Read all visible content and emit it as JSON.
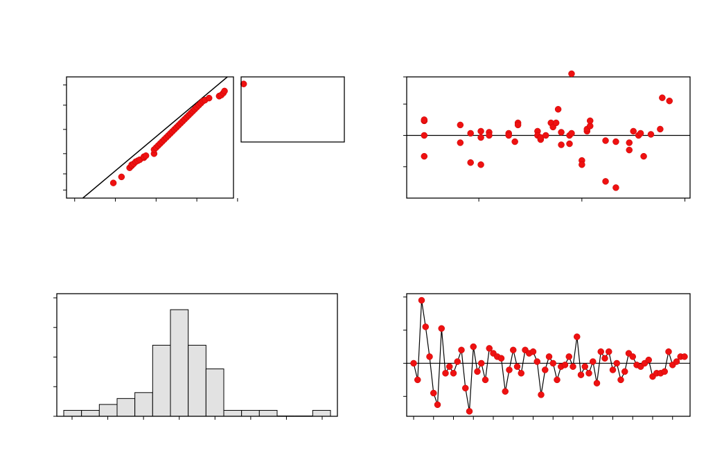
{
  "chart_data": [
    {
      "type": "scatter",
      "panel": "normal-probability-plot",
      "xlim": [
        -3.2,
        0.9
      ],
      "ylim": [
        -3.0,
        3.0
      ],
      "xticks": [
        -3.0,
        -2.0,
        -1.0,
        0.0,
        1.0
      ],
      "yticks": [
        -2.6,
        -1.8,
        -0.8,
        0.4,
        1.6,
        2.6
      ],
      "fit_line": {
        "x": [
          -2.8,
          0.75
        ],
        "y": [
          -3.0,
          3.0
        ]
      },
      "series": [
        {
          "x": [
            -2.05,
            -1.85,
            -1.65,
            -1.6,
            -1.6,
            -1.55,
            -1.5,
            -1.45,
            -1.4,
            -1.3,
            -1.3,
            -1.25,
            -1.05,
            -1.05,
            -1.0,
            -0.95,
            -0.9,
            -0.85,
            -0.8,
            -0.75,
            -0.7,
            -0.65,
            -0.6,
            -0.55,
            -0.5,
            -0.45,
            -0.4,
            -0.35,
            -0.3,
            -0.25,
            -0.2,
            -0.15,
            -0.1,
            -0.05,
            0.0,
            0.05,
            0.1,
            0.15,
            0.2,
            0.3,
            0.55,
            0.55,
            0.6,
            0.65,
            0.68,
            1.15
          ],
          "y": [
            -2.25,
            -1.95,
            -1.5,
            -1.4,
            -1.35,
            -1.3,
            -1.2,
            -1.15,
            -1.1,
            -1.0,
            -0.95,
            -0.9,
            -0.8,
            -0.6,
            -0.5,
            -0.4,
            -0.3,
            -0.2,
            -0.1,
            0.0,
            0.1,
            0.2,
            0.3,
            0.4,
            0.5,
            0.6,
            0.7,
            0.8,
            0.9,
            1.0,
            1.1,
            1.2,
            1.3,
            1.4,
            1.5,
            1.6,
            1.7,
            1.8,
            1.85,
            1.95,
            2.05,
            2.05,
            2.1,
            2.2,
            2.3,
            2.65
          ]
        }
      ]
    },
    {
      "type": "box",
      "panel": "empty-legend-box"
    },
    {
      "type": "scatter",
      "panel": "residuals-vs-fits",
      "xlim": [
        0.0,
        2.75
      ],
      "ylim": [
        -3.0,
        2.8
      ],
      "xticks": [
        0.7,
        1.7,
        2.7
      ],
      "yticks": [
        -1.5,
        0.0,
        1.5,
        2.8
      ],
      "reference_y": 0.0,
      "series": [
        {
          "x": [
            0.17,
            0.17,
            0.17,
            0.17,
            0.17,
            0.52,
            0.52,
            0.62,
            0.62,
            0.72,
            0.72,
            0.72,
            0.8,
            0.8,
            0.99,
            0.99,
            1.05,
            1.08,
            1.08,
            1.27,
            1.27,
            1.3,
            1.3,
            1.35,
            1.4,
            1.42,
            1.45,
            1.47,
            1.5,
            1.5,
            1.58,
            1.58,
            1.6,
            1.6,
            1.7,
            1.7,
            1.75,
            1.75,
            1.78,
            1.78,
            1.93,
            1.93,
            2.03,
            2.03,
            2.16,
            2.16,
            2.2,
            2.25,
            2.27,
            2.3,
            2.37,
            2.46,
            2.48,
            2.55
          ],
          "y": [
            0.7,
            0.0,
            -1.0,
            0.7,
            0.75,
            0.5,
            -0.35,
            0.1,
            -1.3,
            0.2,
            -0.1,
            -1.4,
            0.15,
            0.0,
            0.1,
            0.0,
            -0.3,
            0.6,
            0.5,
            0.2,
            0.0,
            -0.2,
            -0.1,
            0.0,
            0.6,
            0.4,
            0.6,
            1.25,
            -0.45,
            0.15,
            0.0,
            -0.4,
            0.1,
            2.95,
            -1.2,
            -1.4,
            0.2,
            0.3,
            0.45,
            0.7,
            -0.25,
            -2.2,
            -0.3,
            -2.5,
            -0.35,
            -0.7,
            0.2,
            0.0,
            0.1,
            -1.0,
            0.05,
            0.3,
            1.8,
            1.65
          ]
        }
      ]
    },
    {
      "type": "bar",
      "panel": "histogram",
      "values": [
        1,
        1,
        2,
        3,
        4,
        12,
        18,
        12,
        8,
        1,
        1,
        1,
        0,
        0,
        1
      ],
      "ylim": [
        0,
        20
      ],
      "yticks": [
        0,
        5,
        10,
        15,
        20
      ],
      "xticks_count": 8
    },
    {
      "type": "line",
      "panel": "residuals-vs-order",
      "ylim": [
        -3.2,
        4.2
      ],
      "yticks": [
        -2.0,
        0.0,
        2.0,
        4.0
      ],
      "reference_y": 0.0,
      "series": [
        {
          "values": [
            0.0,
            -1.0,
            3.8,
            2.2,
            0.4,
            -1.8,
            -2.5,
            2.1,
            -0.6,
            -0.2,
            -0.6,
            0.1,
            0.8,
            -1.5,
            -2.9,
            1.0,
            -0.5,
            0.0,
            -1.0,
            0.9,
            0.6,
            0.4,
            0.3,
            -1.7,
            -0.4,
            0.8,
            -0.2,
            -0.6,
            0.8,
            0.6,
            0.7,
            0.1,
            -1.9,
            -0.4,
            0.4,
            0.0,
            -1.0,
            -0.2,
            -0.1,
            0.4,
            -0.2,
            1.6,
            -0.7,
            -0.2,
            -0.6,
            0.1,
            -1.2,
            0.7,
            0.3,
            0.7,
            -0.4,
            0.0,
            -1.0,
            -0.5,
            0.6,
            0.4,
            -0.1,
            -0.2,
            0.0,
            0.2,
            -0.8,
            -0.6,
            -0.6,
            -0.5,
            0.7,
            -0.1,
            0.1,
            0.4,
            0.4
          ]
        }
      ]
    }
  ]
}
